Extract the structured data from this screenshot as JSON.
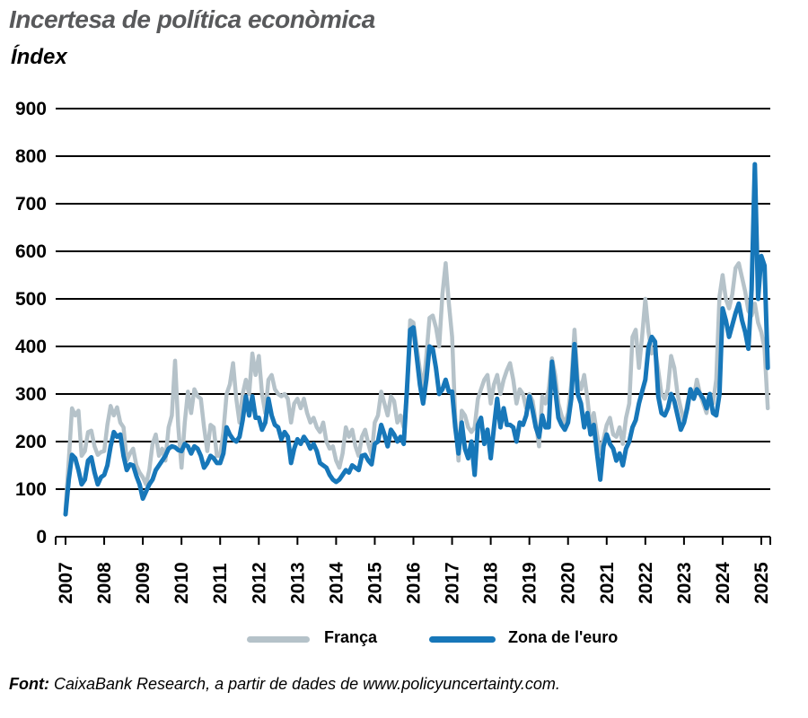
{
  "header": {
    "title": "Incertesa de política econòmica",
    "subtitle": "Índex"
  },
  "legend": {
    "items": [
      {
        "label": "França",
        "color": "#b5c2c9"
      },
      {
        "label": "Zona de l'euro",
        "color": "#1777b9"
      }
    ]
  },
  "footer": {
    "source_label": "Font:",
    "source_text": " CaixaBank Research, a partir de dades de www.policyuncertainty.com."
  },
  "chart_data": {
    "type": "line",
    "title": "Incertesa de política econòmica",
    "ylabel": "Índex",
    "ylim": [
      0,
      900
    ],
    "yticks": [
      0,
      100,
      200,
      300,
      400,
      500,
      600,
      700,
      800,
      900
    ],
    "grid": "horizontal",
    "legend_position": "bottom-center",
    "x_unit": "month",
    "x_start": "2007-01",
    "x_end": "2025-03",
    "x_tick_labels": [
      "2007",
      "2008",
      "2009",
      "2010",
      "2011",
      "2012",
      "2013",
      "2014",
      "2015",
      "2016",
      "2017",
      "2018",
      "2019",
      "2020",
      "2021",
      "2022",
      "2023",
      "2024",
      "2025"
    ],
    "series": [
      {
        "name": "França",
        "color": "#b5c2c9",
        "values": [
          57,
          160,
          270,
          255,
          265,
          170,
          180,
          220,
          223,
          190,
          172,
          178,
          180,
          235,
          275,
          255,
          272,
          240,
          230,
          160,
          175,
          185,
          150,
          135,
          125,
          110,
          140,
          195,
          215,
          170,
          185,
          160,
          230,
          255,
          370,
          230,
          145,
          240,
          305,
          260,
          310,
          295,
          290,
          230,
          180,
          235,
          230,
          170,
          170,
          220,
          300,
          320,
          365,
          290,
          240,
          300,
          330,
          300,
          385,
          340,
          380,
          300,
          260,
          330,
          340,
          310,
          300,
          295,
          300,
          290,
          240,
          280,
          290,
          270,
          290,
          260,
          240,
          250,
          230,
          220,
          240,
          200,
          185,
          190,
          160,
          145,
          175,
          230,
          210,
          225,
          190,
          170,
          210,
          225,
          195,
          170,
          240,
          255,
          305,
          280,
          255,
          295,
          285,
          240,
          255,
          230,
          300,
          455,
          450,
          400,
          350,
          310,
          380,
          460,
          465,
          440,
          400,
          510,
          575,
          490,
          420,
          250,
          160,
          265,
          255,
          230,
          220,
          230,
          290,
          310,
          330,
          340,
          280,
          320,
          340,
          300,
          330,
          350,
          365,
          330,
          280,
          310,
          300,
          270,
          300,
          285,
          240,
          190,
          295,
          280,
          310,
          375,
          340,
          280,
          255,
          235,
          260,
          320,
          435,
          330,
          310,
          340,
          290,
          230,
          260,
          215,
          175,
          205,
          235,
          250,
          215,
          210,
          230,
          195,
          250,
          280,
          420,
          435,
          355,
          420,
          500,
          430,
          385,
          395,
          350,
          300,
          290,
          310,
          380,
          355,
          300,
          270,
          240,
          280,
          310,
          290,
          330,
          300,
          280,
          260,
          300,
          280,
          330,
          505,
          550,
          500,
          480,
          510,
          565,
          575,
          545,
          515,
          475,
          465,
          490,
          450,
          430,
          395,
          270
        ]
      },
      {
        "name": "Zona de l'euro",
        "color": "#1777b9",
        "values": [
          47,
          120,
          172,
          165,
          140,
          110,
          120,
          160,
          167,
          135,
          110,
          125,
          130,
          150,
          190,
          220,
          210,
          215,
          170,
          140,
          152,
          150,
          128,
          110,
          80,
          95,
          110,
          120,
          140,
          150,
          160,
          170,
          185,
          190,
          188,
          182,
          180,
          195,
          190,
          175,
          190,
          185,
          170,
          145,
          155,
          170,
          165,
          155,
          155,
          175,
          230,
          215,
          205,
          200,
          210,
          245,
          295,
          255,
          295,
          250,
          250,
          225,
          240,
          290,
          255,
          235,
          230,
          205,
          220,
          210,
          155,
          185,
          205,
          195,
          210,
          200,
          185,
          195,
          180,
          155,
          150,
          145,
          130,
          120,
          115,
          120,
          130,
          140,
          135,
          150,
          145,
          140,
          170,
          172,
          160,
          152,
          195,
          200,
          235,
          215,
          190,
          225,
          215,
          200,
          210,
          195,
          310,
          435,
          440,
          380,
          320,
          280,
          330,
          400,
          395,
          355,
          300,
          310,
          330,
          305,
          305,
          230,
          175,
          240,
          185,
          165,
          200,
          130,
          235,
          250,
          195,
          225,
          165,
          230,
          290,
          230,
          270,
          235,
          235,
          230,
          200,
          240,
          235,
          255,
          295,
          265,
          230,
          210,
          255,
          230,
          230,
          368,
          310,
          250,
          235,
          225,
          240,
          290,
          405,
          300,
          280,
          230,
          260,
          215,
          235,
          175,
          120,
          190,
          215,
          195,
          185,
          160,
          175,
          150,
          185,
          200,
          230,
          245,
          280,
          305,
          330,
          400,
          420,
          410,
          295,
          260,
          255,
          270,
          300,
          285,
          255,
          225,
          240,
          270,
          310,
          290,
          310,
          300,
          290,
          270,
          300,
          260,
          255,
          300,
          480,
          455,
          420,
          445,
          470,
          490,
          455,
          430,
          395,
          520,
          783,
          500,
          590,
          570,
          355
        ]
      }
    ]
  }
}
